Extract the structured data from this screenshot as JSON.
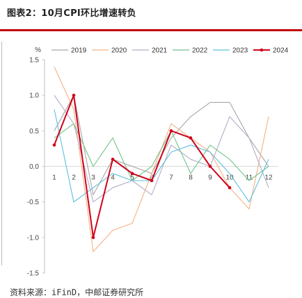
{
  "figure": {
    "title": "图表2：10月CPI环比增速转负",
    "source": "资料来源：iFinD，中邮证券研究所"
  },
  "chart_data": {
    "type": "line",
    "unit_label": "%",
    "categories": [
      "1",
      "2",
      "3",
      "4",
      "5",
      "6",
      "7",
      "8",
      "9",
      "10",
      "11",
      "12"
    ],
    "ylim": [
      -1.5,
      1.5
    ],
    "yticks": [
      1.5,
      1.0,
      0.5,
      0.0,
      -0.5,
      -1.0,
      -1.5
    ],
    "ytick_labels": [
      "1.5",
      "1.0",
      "0.5",
      "0.0",
      "-0.5",
      "-1.0",
      "-1.5"
    ],
    "grid": false,
    "legend_position": "top",
    "series": [
      {
        "name": "2019",
        "color": "#a6a6a6",
        "markers": false,
        "bold": false,
        "values": [
          0.5,
          1.0,
          -0.4,
          0.1,
          0.0,
          -0.1,
          0.4,
          0.7,
          0.9,
          0.9,
          0.4,
          0.0
        ]
      },
      {
        "name": "2020",
        "color": "#f4b183",
        "markers": false,
        "bold": false,
        "values": [
          1.4,
          0.8,
          -1.2,
          -0.9,
          -0.8,
          -0.1,
          0.6,
          0.4,
          0.2,
          -0.3,
          -0.6,
          0.7
        ]
      },
      {
        "name": "2021",
        "color": "#b4acc6",
        "markers": false,
        "bold": false,
        "values": [
          1.0,
          0.6,
          -0.5,
          -0.3,
          -0.2,
          -0.4,
          0.3,
          0.1,
          0.0,
          0.7,
          0.4,
          -0.3
        ]
      },
      {
        "name": "2022",
        "color": "#70c48a",
        "markers": false,
        "bold": false,
        "values": [
          0.4,
          0.6,
          0.0,
          0.4,
          -0.2,
          0.0,
          0.5,
          -0.1,
          0.3,
          0.1,
          -0.2,
          0.0
        ]
      },
      {
        "name": "2023",
        "color": "#5bc0de",
        "markers": false,
        "bold": false,
        "values": [
          0.8,
          -0.5,
          -0.3,
          -0.1,
          -0.2,
          -0.2,
          0.2,
          0.3,
          0.2,
          -0.1,
          -0.5,
          0.1
        ]
      },
      {
        "name": "2024",
        "color": "#d0021b",
        "markers": true,
        "bold": true,
        "values": [
          0.3,
          1.0,
          -1.0,
          0.1,
          -0.1,
          -0.2,
          0.5,
          0.4,
          0.0,
          -0.3,
          null,
          null
        ]
      }
    ]
  }
}
